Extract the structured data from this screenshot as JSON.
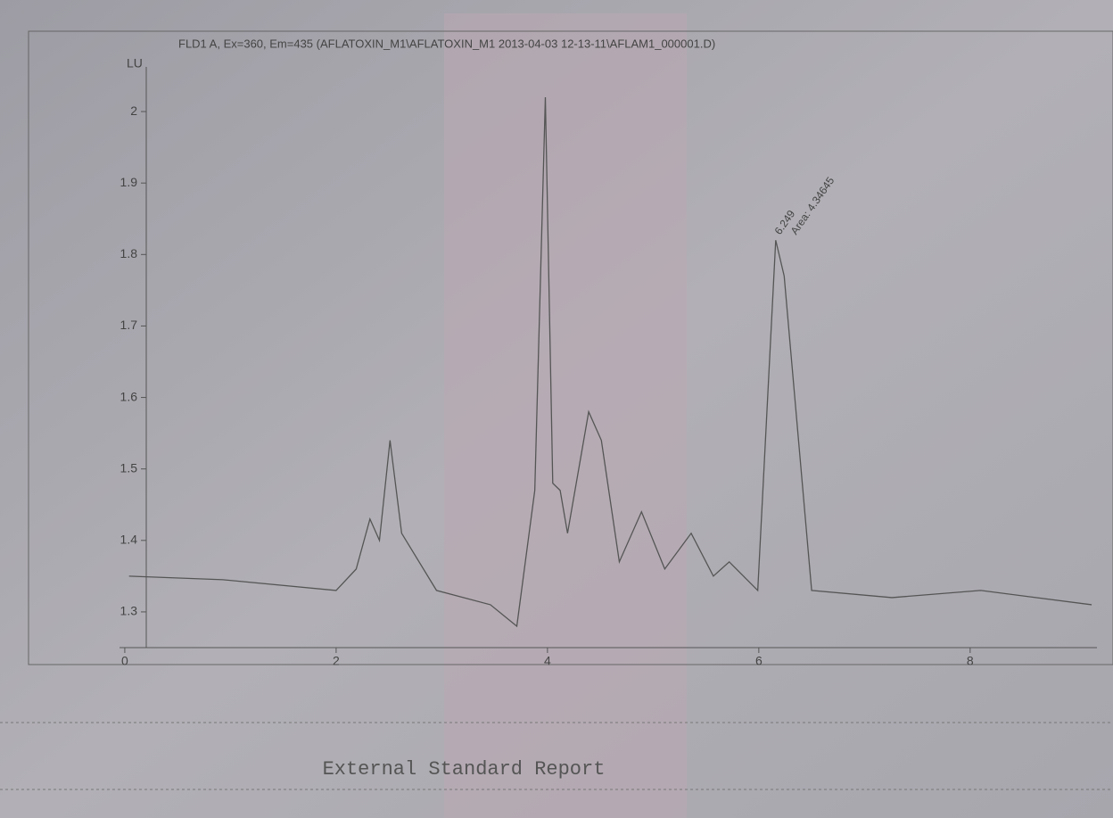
{
  "chart_data": {
    "type": "line",
    "title": "FLD1 A, Ex=360, Em=435 (AFLATOXIN_M1\\AFLATOXIN_M1 2013-04-03 12-13-11\\AFLAM1_000001.D)",
    "ylabel": "LU",
    "x": [
      0.04,
      0.93,
      2.0,
      2.19,
      2.32,
      2.41,
      2.51,
      2.62,
      2.95,
      3.46,
      3.71,
      3.88,
      3.98,
      4.05,
      4.12,
      4.19,
      4.39,
      4.51,
      4.68,
      4.89,
      5.11,
      5.36,
      5.57,
      5.72,
      5.99,
      6.16,
      6.24,
      6.5,
      7.26,
      8.1,
      9.15
    ],
    "series": [
      {
        "color": "#555555",
        "values": [
          1.35,
          1.345,
          1.33,
          1.36,
          1.43,
          1.4,
          1.54,
          1.41,
          1.33,
          1.31,
          1.28,
          1.47,
          2.02,
          1.48,
          1.47,
          1.41,
          1.58,
          1.54,
          1.37,
          1.44,
          1.36,
          1.41,
          1.35,
          1.37,
          1.33,
          1.82,
          1.77,
          1.33,
          1.32,
          1.33,
          1.31
        ]
      }
    ],
    "xlim": [
      -0.05,
      9.2
    ],
    "xticks": [
      0,
      2,
      4,
      6,
      8
    ],
    "ylim": [
      1.25,
      2.05
    ],
    "yticks": [
      1.3,
      1.4,
      1.5,
      1.6,
      1.7,
      1.8,
      1.9,
      2
    ],
    "annotations": [
      "6.249",
      "Area: 4.34645"
    ],
    "footer": "External Standard Report"
  }
}
